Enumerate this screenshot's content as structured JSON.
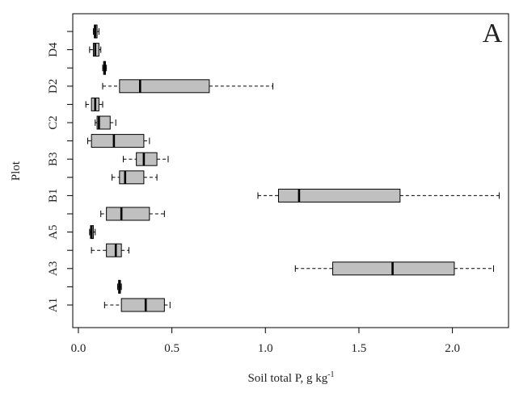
{
  "chart_data": {
    "type": "boxplot",
    "orientation": "horizontal",
    "panel_label": "A",
    "xlabel": "Soil total P, g kg",
    "xlabel_superscript": "-1",
    "ylabel": "Plot",
    "xlim": [
      -0.03,
      2.3
    ],
    "xticks": [
      0.0,
      0.5,
      1.0,
      1.5,
      2.0
    ],
    "xtick_labels": [
      "0.0",
      "0.5",
      "1.0",
      "1.5",
      "2.0"
    ],
    "grid": false,
    "colors": {
      "box_fill": "#c0c0c0",
      "stroke": "#000000"
    },
    "categories": [
      "A1",
      "",
      "A3",
      "",
      "A5",
      "",
      "B1",
      "",
      "B3",
      "",
      "C2",
      "",
      "D2",
      "",
      "D4",
      ""
    ],
    "boxes": [
      {
        "category": "A1",
        "min": 0.14,
        "q1": 0.23,
        "median": 0.36,
        "q3": 0.46,
        "max": 0.49
      },
      {
        "category": "",
        "min": 0.21,
        "q1": 0.215,
        "median": 0.22,
        "q3": 0.225,
        "max": 0.23
      },
      {
        "category": "A3",
        "min": 1.16,
        "q1": 1.36,
        "median": 1.68,
        "q3": 2.01,
        "max": 2.22
      },
      {
        "category": "",
        "min": 0.07,
        "q1": 0.15,
        "median": 0.2,
        "q3": 0.23,
        "max": 0.27
      },
      {
        "category": "A5",
        "min": 0.06,
        "q1": 0.065,
        "median": 0.07,
        "q3": 0.08,
        "max": 0.09
      },
      {
        "category": "",
        "min": 0.12,
        "q1": 0.15,
        "median": 0.23,
        "q3": 0.38,
        "max": 0.46
      },
      {
        "category": "B1",
        "min": 0.96,
        "q1": 1.07,
        "median": 1.18,
        "q3": 1.72,
        "max": 2.25
      },
      {
        "category": "",
        "min": 0.18,
        "q1": 0.22,
        "median": 0.25,
        "q3": 0.35,
        "max": 0.42
      },
      {
        "category": "B3",
        "min": 0.24,
        "q1": 0.31,
        "median": 0.35,
        "q3": 0.42,
        "max": 0.48
      },
      {
        "category": "",
        "min": 0.05,
        "q1": 0.07,
        "median": 0.19,
        "q3": 0.35,
        "max": 0.38
      },
      {
        "category": "C2",
        "min": 0.09,
        "q1": 0.1,
        "median": 0.11,
        "q3": 0.17,
        "max": 0.2
      },
      {
        "category": "",
        "min": 0.04,
        "q1": 0.07,
        "median": 0.09,
        "q3": 0.11,
        "max": 0.13
      },
      {
        "category": "D2",
        "min": 0.13,
        "q1": 0.22,
        "median": 0.33,
        "q3": 0.7,
        "max": 1.04
      },
      {
        "category": "",
        "min": 0.13,
        "q1": 0.135,
        "median": 0.14,
        "q3": 0.145,
        "max": 0.15
      },
      {
        "category": "D4",
        "min": 0.06,
        "q1": 0.08,
        "median": 0.09,
        "q3": 0.11,
        "max": 0.12
      },
      {
        "category": "",
        "min": 0.08,
        "q1": 0.085,
        "median": 0.09,
        "q3": 0.1,
        "max": 0.11
      }
    ]
  }
}
